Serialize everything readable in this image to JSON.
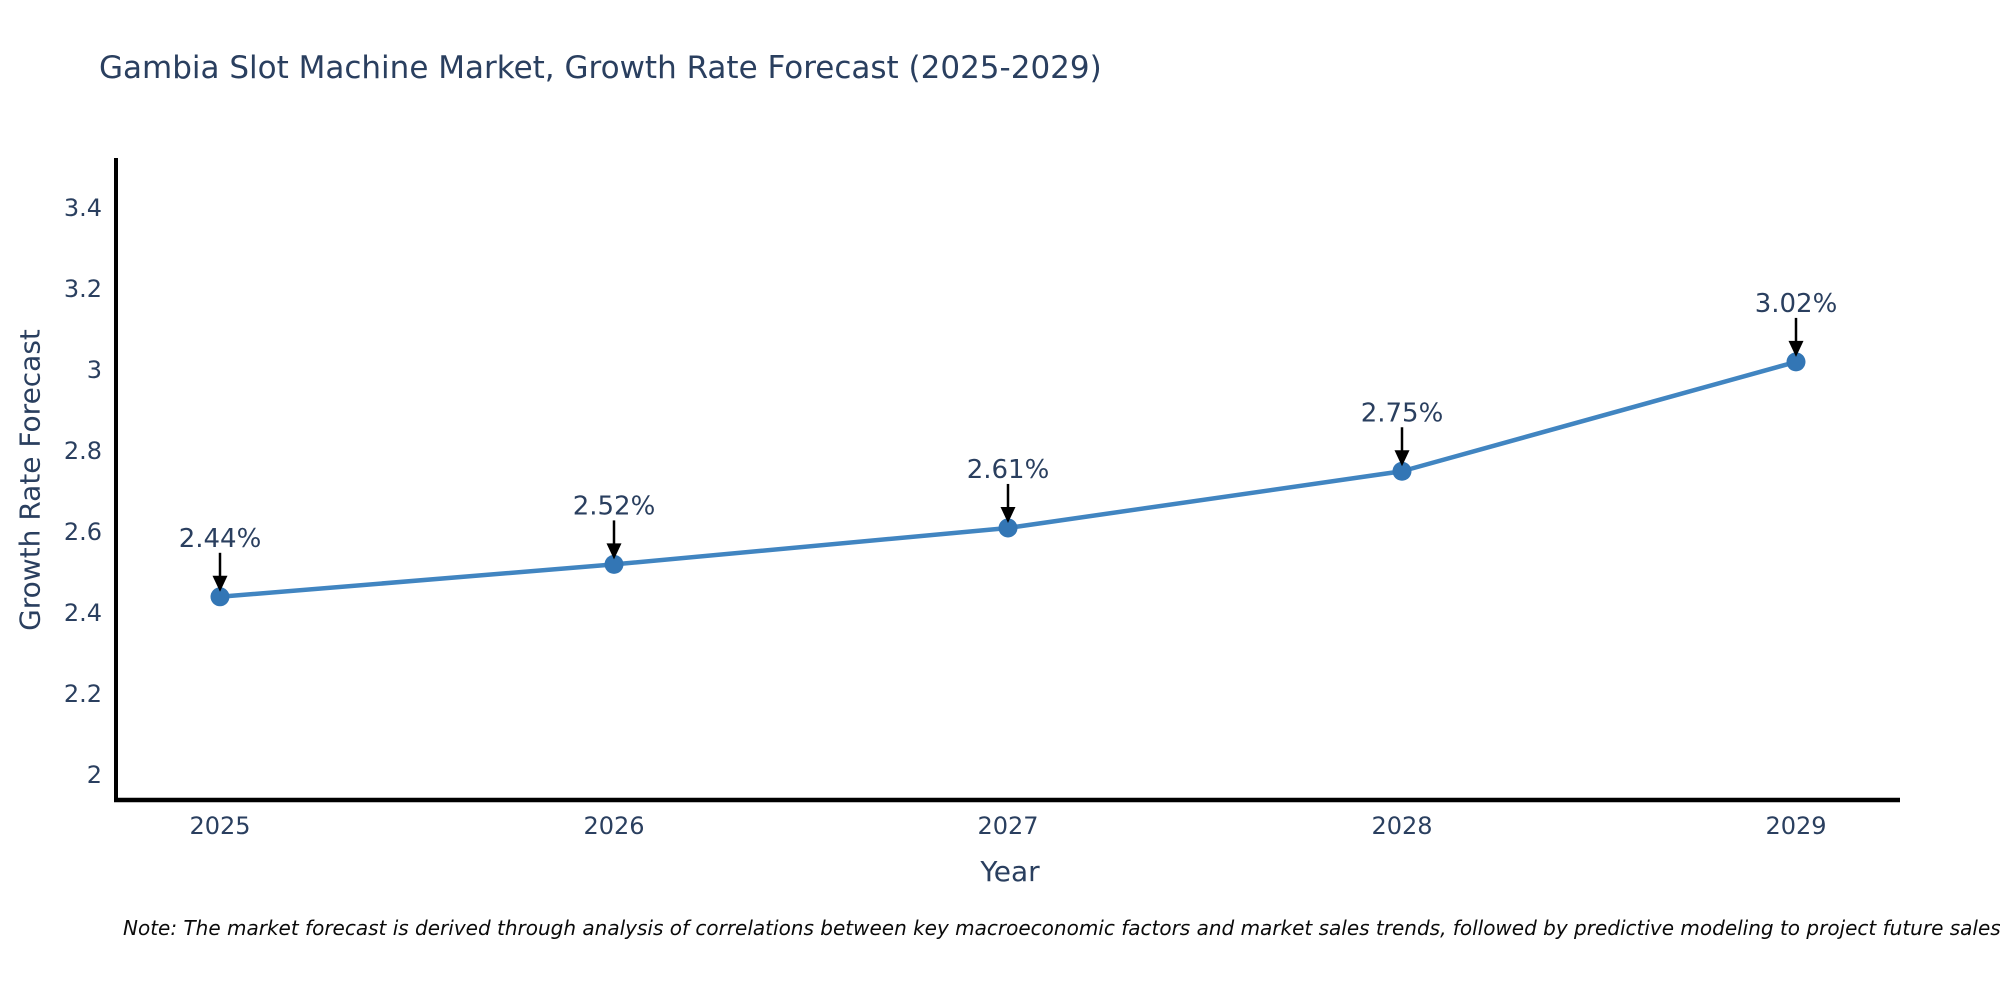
{
  "chart_data": {
    "type": "line",
    "title": "Gambia Slot Machine Market, Growth Rate Forecast (2025-2029)",
    "xlabel": "Year",
    "ylabel": "Growth Rate Forecast",
    "categories": [
      "2025",
      "2026",
      "2027",
      "2028",
      "2029"
    ],
    "series": [
      {
        "name": "Growth Rate Forecast",
        "values": [
          2.44,
          2.52,
          2.61,
          2.75,
          3.02
        ],
        "point_labels": [
          "2.44%",
          "2.52%",
          "2.61%",
          "2.75%",
          "3.02%"
        ]
      }
    ],
    "ylim": [
      2,
      3.4
    ],
    "ytick_values": [
      2,
      2.2,
      2.4,
      2.6,
      2.8,
      3,
      3.2,
      3.4
    ],
    "ytick_labels": [
      "2",
      "2.2",
      "2.4",
      "2.6",
      "2.8",
      "3",
      "3.2",
      "3.4"
    ],
    "grid": false,
    "legend": false,
    "annotations_have_arrows": true,
    "colors": {
      "line": "#4185c1",
      "marker": "#3376b5",
      "axis": "#000000",
      "arrow": "#000000",
      "text": "#2a3f5f"
    },
    "note": "Note: The market forecast is derived through analysis of correlations between key macroeconomic factors and market sales trends, followed by predictive modeling to project future sales"
  }
}
